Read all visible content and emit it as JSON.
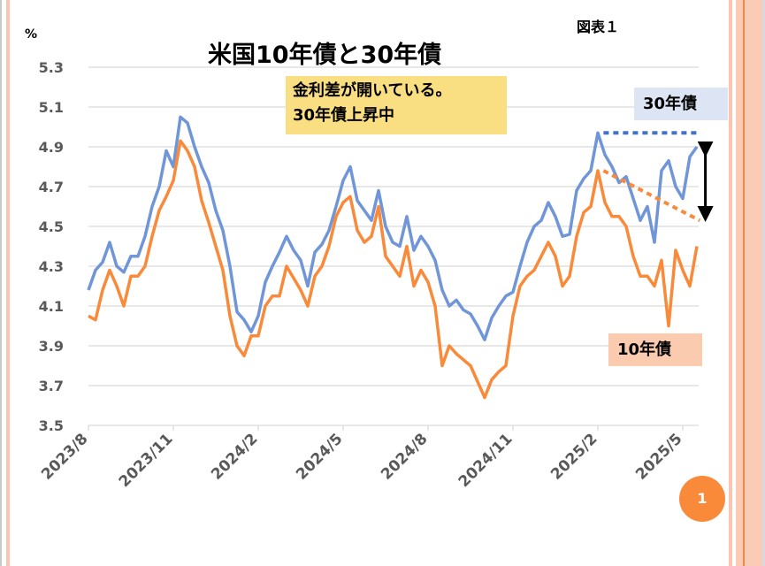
{
  "figure_label": "図表１",
  "unit_label": "%",
  "annotation_note": [
    "金利差が開いている。",
    "30年債上昇中"
  ],
  "page_number": "1",
  "colors": {
    "series_30y": "#7096d8",
    "series_10y": "#f98a3a",
    "label_30y_bg": "#dde5f4",
    "label_10y_bg": "#fbcbb0",
    "note_bg": "#f9de82",
    "badge": "#f98a3a"
  },
  "chart_data": {
    "type": "line",
    "title": "米国10年債と30年債",
    "xlabel": "",
    "ylabel": "%",
    "ylim": [
      3.5,
      5.3
    ],
    "yticks": [
      "3.5",
      "3.7",
      "3.9",
      "4.1",
      "4.3",
      "4.5",
      "4.7",
      "4.9",
      "5.1",
      "5.3"
    ],
    "xticks": [
      "2023/8",
      "2023/11",
      "2024/2",
      "2024/5",
      "2024/8",
      "2024/11",
      "2025/2",
      "2025/5"
    ],
    "x_range_months": [
      0,
      21.6
    ],
    "grid": true,
    "legend": "inline labels",
    "series": [
      {
        "name": "30年債",
        "label_position": "top-right",
        "x_months": [
          0,
          0.25,
          0.5,
          0.75,
          1,
          1.25,
          1.5,
          1.75,
          2,
          2.25,
          2.5,
          2.75,
          3,
          3.25,
          3.5,
          3.75,
          4,
          4.25,
          4.5,
          4.75,
          5,
          5.25,
          5.5,
          5.75,
          6,
          6.25,
          6.5,
          6.75,
          7,
          7.25,
          7.5,
          7.75,
          8,
          8.25,
          8.5,
          8.75,
          9,
          9.25,
          9.5,
          9.75,
          10,
          10.25,
          10.5,
          10.75,
          11,
          11.25,
          11.5,
          11.75,
          12,
          12.25,
          12.5,
          12.75,
          13,
          13.25,
          13.5,
          13.75,
          14,
          14.25,
          14.5,
          14.75,
          15,
          15.25,
          15.5,
          15.75,
          16,
          16.25,
          16.5,
          16.75,
          17,
          17.25,
          17.5,
          17.75,
          18,
          18.25,
          18.5,
          18.75,
          19,
          19.25,
          19.5,
          19.75,
          20,
          20.25,
          20.5,
          20.75,
          21,
          21.25,
          21.5
        ],
        "values": [
          4.18,
          4.28,
          4.32,
          4.42,
          4.3,
          4.27,
          4.35,
          4.35,
          4.45,
          4.6,
          4.7,
          4.88,
          4.8,
          5.05,
          5.02,
          4.9,
          4.8,
          4.72,
          4.58,
          4.48,
          4.3,
          4.07,
          4.03,
          3.97,
          4.05,
          4.22,
          4.3,
          4.37,
          4.45,
          4.38,
          4.33,
          4.2,
          4.37,
          4.41,
          4.48,
          4.6,
          4.73,
          4.8,
          4.63,
          4.58,
          4.53,
          4.68,
          4.5,
          4.42,
          4.4,
          4.55,
          4.38,
          4.45,
          4.4,
          4.33,
          4.18,
          4.1,
          4.13,
          4.08,
          4.06,
          4.0,
          3.93,
          4.04,
          4.1,
          4.15,
          4.17,
          4.3,
          4.42,
          4.5,
          4.53,
          4.62,
          4.55,
          4.45,
          4.46,
          4.68,
          4.74,
          4.78,
          4.97,
          4.86,
          4.8,
          4.72,
          4.75,
          4.64,
          4.53,
          4.6,
          4.42,
          4.78,
          4.83,
          4.7,
          4.64,
          4.85,
          4.9,
          4.97,
          4.9
        ]
      },
      {
        "name": "10年債",
        "label_position": "bottom-right",
        "x_months": [
          0,
          0.25,
          0.5,
          0.75,
          1,
          1.25,
          1.5,
          1.75,
          2,
          2.25,
          2.5,
          2.75,
          3,
          3.25,
          3.5,
          3.75,
          4,
          4.25,
          4.5,
          4.75,
          5,
          5.25,
          5.5,
          5.75,
          6,
          6.25,
          6.5,
          6.75,
          7,
          7.25,
          7.5,
          7.75,
          8,
          8.25,
          8.5,
          8.75,
          9,
          9.25,
          9.5,
          9.75,
          10,
          10.25,
          10.5,
          10.75,
          11,
          11.25,
          11.5,
          11.75,
          12,
          12.25,
          12.5,
          12.75,
          13,
          13.25,
          13.5,
          13.75,
          14,
          14.25,
          14.5,
          14.75,
          15,
          15.25,
          15.5,
          15.75,
          16,
          16.25,
          16.5,
          16.75,
          17,
          17.25,
          17.5,
          17.75,
          18,
          18.25,
          18.5,
          18.75,
          19,
          19.25,
          19.5,
          19.75,
          20,
          20.25,
          20.5,
          20.75,
          21,
          21.25,
          21.5
        ],
        "values": [
          4.05,
          4.03,
          4.18,
          4.28,
          4.2,
          4.1,
          4.25,
          4.25,
          4.3,
          4.45,
          4.58,
          4.65,
          4.73,
          4.93,
          4.88,
          4.8,
          4.63,
          4.52,
          4.4,
          4.28,
          4.05,
          3.9,
          3.85,
          3.95,
          3.95,
          4.1,
          4.15,
          4.15,
          4.3,
          4.24,
          4.18,
          4.1,
          4.25,
          4.3,
          4.4,
          4.55,
          4.62,
          4.65,
          4.48,
          4.42,
          4.45,
          4.6,
          4.35,
          4.3,
          4.25,
          4.4,
          4.2,
          4.28,
          4.22,
          4.1,
          3.8,
          3.9,
          3.86,
          3.83,
          3.8,
          3.72,
          3.64,
          3.73,
          3.77,
          3.8,
          4.05,
          4.2,
          4.25,
          4.28,
          4.35,
          4.42,
          4.35,
          4.2,
          4.25,
          4.45,
          4.57,
          4.6,
          4.78,
          4.62,
          4.55,
          4.55,
          4.5,
          4.35,
          4.25,
          4.25,
          4.2,
          4.33,
          4.0,
          4.38,
          4.28,
          4.2,
          4.4,
          4.53,
          4.45
        ]
      }
    ],
    "annotations": [
      {
        "type": "dotted-line",
        "series": "30年債",
        "from": [
          18.2,
          4.97
        ],
        "to": [
          21.6,
          4.97
        ],
        "color": "#4472c4"
      },
      {
        "type": "dotted-line",
        "series": "10年債",
        "from": [
          18.2,
          4.78
        ],
        "to": [
          21.6,
          4.53
        ],
        "color": "#f98a3a"
      },
      {
        "type": "double-arrow",
        "from": [
          21.8,
          4.95
        ],
        "to": [
          21.8,
          4.5
        ],
        "color": "#000000"
      }
    ]
  }
}
